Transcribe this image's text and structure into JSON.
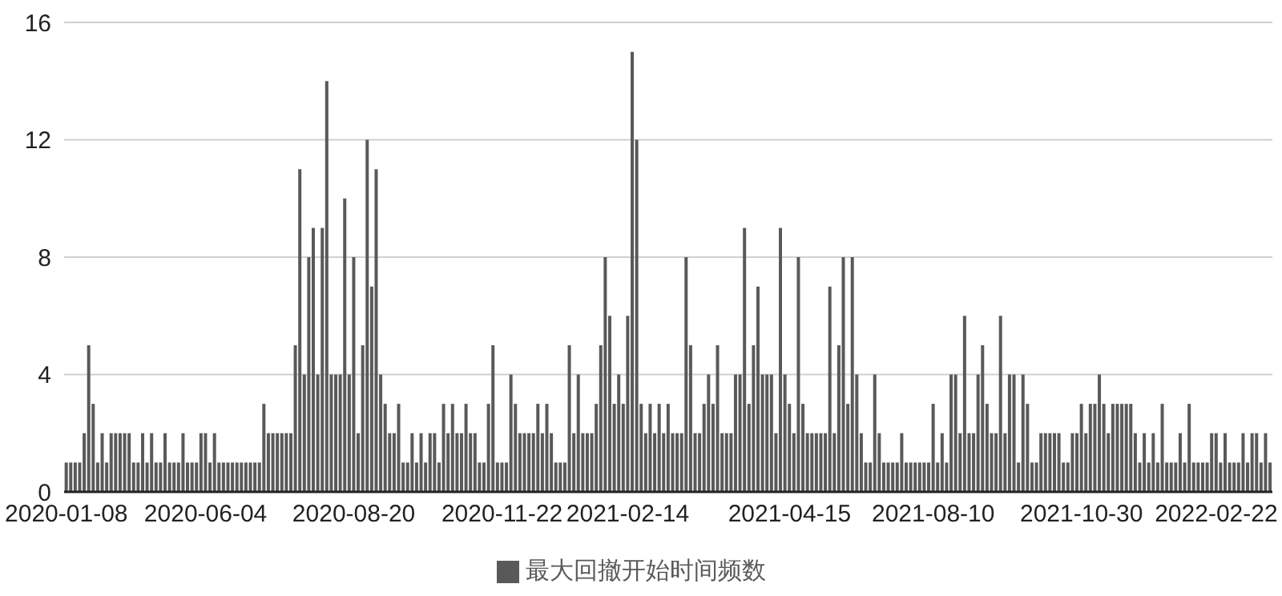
{
  "chart_data": {
    "type": "bar",
    "categories": [
      "2020-01-08",
      null,
      null,
      null,
      null,
      null,
      null,
      null,
      null,
      null,
      null,
      null,
      null,
      null,
      null,
      null,
      null,
      null,
      null,
      null,
      null,
      null,
      null,
      null,
      null,
      null,
      null,
      null,
      null,
      null,
      null,
      "2020-06-04",
      null,
      null,
      null,
      null,
      null,
      null,
      null,
      null,
      null,
      null,
      null,
      null,
      null,
      null,
      null,
      null,
      null,
      null,
      null,
      null,
      null,
      null,
      null,
      null,
      null,
      null,
      null,
      null,
      null,
      null,
      null,
      null,
      "2020-08-20",
      null,
      null,
      null,
      null,
      null,
      null,
      null,
      null,
      null,
      null,
      null,
      null,
      null,
      null,
      null,
      null,
      null,
      null,
      null,
      null,
      null,
      null,
      null,
      null,
      null,
      null,
      null,
      null,
      null,
      null,
      null,
      null,
      "2020-11-22",
      null,
      null,
      null,
      null,
      null,
      null,
      null,
      null,
      null,
      null,
      null,
      null,
      null,
      null,
      null,
      null,
      null,
      null,
      null,
      null,
      null,
      null,
      null,
      null,
      null,
      null,
      null,
      "2021-02-14",
      null,
      null,
      null,
      null,
      null,
      null,
      null,
      null,
      null,
      null,
      null,
      null,
      null,
      null,
      null,
      null,
      null,
      null,
      null,
      null,
      null,
      null,
      null,
      null,
      null,
      null,
      null,
      null,
      null,
      null,
      null,
      null,
      null,
      null,
      null,
      "2021-04-15",
      null,
      null,
      null,
      null,
      null,
      null,
      null,
      null,
      null,
      null,
      null,
      null,
      null,
      null,
      null,
      null,
      null,
      null,
      null,
      null,
      null,
      null,
      null,
      null,
      null,
      null,
      null,
      null,
      null,
      null,
      null,
      "2021-08-10",
      null,
      null,
      null,
      null,
      null,
      null,
      null,
      null,
      null,
      null,
      null,
      null,
      null,
      null,
      null,
      null,
      null,
      null,
      null,
      null,
      null,
      null,
      null,
      null,
      null,
      null,
      null,
      null,
      null,
      null,
      null,
      null,
      "2021-10-30",
      null,
      null,
      null,
      null,
      null,
      null,
      null,
      null,
      null,
      null,
      null,
      null,
      null,
      null,
      null,
      null,
      null,
      null,
      null,
      null,
      null,
      null,
      null,
      null,
      null,
      null,
      null,
      null,
      null,
      "2022-02-22",
      null,
      null,
      null,
      null,
      null,
      null,
      null,
      null,
      null,
      null,
      null,
      null
    ],
    "series": [
      {
        "name": "最大回撤开始时间频数",
        "color": "#595959",
        "values": [
          1,
          1,
          1,
          1,
          2,
          5,
          3,
          1,
          2,
          1,
          2,
          2,
          2,
          2,
          2,
          1,
          1,
          2,
          1,
          2,
          1,
          1,
          2,
          1,
          1,
          1,
          2,
          1,
          1,
          1,
          2,
          2,
          1,
          2,
          1,
          1,
          1,
          1,
          1,
          1,
          1,
          1,
          1,
          1,
          3,
          2,
          2,
          2,
          2,
          2,
          2,
          5,
          11,
          4,
          8,
          9,
          4,
          9,
          14,
          4,
          4,
          4,
          10,
          4,
          8,
          2,
          5,
          12,
          7,
          11,
          4,
          3,
          2,
          2,
          3,
          1,
          1,
          2,
          1,
          2,
          1,
          2,
          2,
          1,
          3,
          2,
          3,
          2,
          2,
          3,
          2,
          2,
          1,
          1,
          3,
          5,
          1,
          1,
          1,
          4,
          3,
          2,
          2,
          2,
          2,
          3,
          2,
          3,
          2,
          1,
          1,
          1,
          5,
          2,
          4,
          2,
          2,
          2,
          3,
          5,
          8,
          6,
          3,
          4,
          3,
          6,
          15,
          12,
          3,
          2,
          3,
          2,
          3,
          2,
          3,
          2,
          2,
          2,
          8,
          5,
          2,
          2,
          3,
          4,
          3,
          5,
          2,
          2,
          2,
          4,
          4,
          9,
          3,
          5,
          7,
          4,
          4,
          4,
          2,
          9,
          4,
          3,
          2,
          8,
          3,
          2,
          2,
          2,
          2,
          2,
          7,
          2,
          5,
          8,
          3,
          8,
          4,
          2,
          1,
          1,
          4,
          2,
          1,
          1,
          1,
          1,
          2,
          1,
          1,
          1,
          1,
          1,
          1,
          3,
          1,
          2,
          1,
          4,
          4,
          2,
          6,
          2,
          2,
          4,
          5,
          3,
          2,
          2,
          6,
          2,
          4,
          4,
          1,
          4,
          3,
          1,
          1,
          2,
          2,
          2,
          2,
          2,
          1,
          1,
          2,
          2,
          3,
          2,
          3,
          3,
          4,
          3,
          2,
          3,
          3,
          3,
          3,
          3,
          2,
          1,
          2,
          1,
          2,
          1,
          3,
          1,
          1,
          1,
          2,
          1,
          3,
          1,
          1,
          1,
          1,
          2,
          2,
          1,
          2,
          1,
          1,
          1,
          2,
          1,
          2,
          2,
          1,
          2,
          1
        ]
      }
    ],
    "ylim": [
      0,
      16
    ],
    "yticks": [
      0,
      4,
      8,
      12,
      16
    ],
    "grid": "y",
    "legend": "bottom"
  }
}
